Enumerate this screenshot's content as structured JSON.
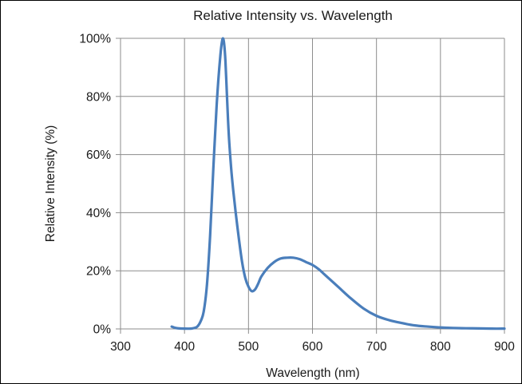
{
  "chart_data": {
    "type": "line",
    "title": "Relative Intensity vs. Wavelength",
    "xlabel": "Wavelength (nm)",
    "ylabel": "Relative Intensity (%)",
    "xlim": [
      300,
      900
    ],
    "ylim": [
      0,
      100
    ],
    "x_ticks": [
      300,
      400,
      500,
      600,
      700,
      800,
      900
    ],
    "y_ticks": [
      0,
      20,
      40,
      60,
      80,
      100
    ],
    "x_tick_labels": [
      "300",
      "400",
      "500",
      "600",
      "700",
      "800",
      "900"
    ],
    "y_tick_labels": [
      "0%",
      "20%",
      "40%",
      "60%",
      "80%",
      "100%"
    ],
    "grid": true,
    "legend": "none",
    "series": [
      {
        "color": "#4a7ebb",
        "x": [
          380,
          385,
          390,
          400,
          410,
          415,
          420,
          425,
          430,
          435,
          440,
          445,
          450,
          453,
          456,
          458,
          460,
          462,
          464,
          466,
          468,
          470,
          473,
          476,
          480,
          485,
          490,
          495,
          500,
          505,
          510,
          515,
          520,
          530,
          540,
          550,
          560,
          570,
          580,
          590,
          600,
          610,
          620,
          640,
          660,
          680,
          700,
          720,
          740,
          760,
          780,
          800,
          820,
          850,
          880,
          900
        ],
        "y": [
          0.8,
          0.4,
          0.2,
          0.1,
          0.1,
          0.3,
          0.8,
          2.5,
          6,
          15,
          32,
          55,
          76,
          86,
          94,
          98,
          100,
          98,
          92,
          82,
          72,
          64,
          55,
          48,
          40,
          31,
          23,
          17.5,
          14.5,
          13,
          13.5,
          15.5,
          18,
          21,
          23,
          24.2,
          24.5,
          24.5,
          24,
          23,
          22,
          20.5,
          18.5,
          14.5,
          10.5,
          7,
          4.5,
          3,
          2,
          1.2,
          0.8,
          0.5,
          0.3,
          0.2,
          0.1,
          0.1
        ]
      }
    ]
  }
}
